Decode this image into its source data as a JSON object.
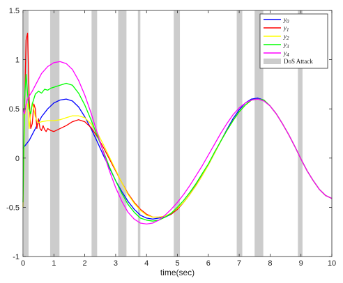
{
  "chart_data": {
    "type": "line",
    "xlabel": "time(sec)",
    "ylabel": "",
    "title": "",
    "xlim": [
      0,
      10
    ],
    "ylim": [
      -1,
      1.5
    ],
    "xticks": [
      0,
      1,
      2,
      3,
      4,
      5,
      6,
      7,
      8,
      9,
      10
    ],
    "yticks": [
      -1,
      -0.5,
      0,
      0.5,
      1,
      1.5
    ],
    "xtick_labels": [
      "0",
      "1",
      "2",
      "3",
      "4",
      "5",
      "6",
      "7",
      "8",
      "9",
      "10"
    ],
    "ytick_labels": [
      "-1",
      "-0.5",
      "0",
      "0.5",
      "1",
      "1.5"
    ],
    "legend_position": "top-right",
    "grid": false,
    "dos_attack": {
      "name": "DoS Attack",
      "color": "#cccccc",
      "intervals": [
        [
          0.02,
          0.18
        ],
        [
          0.88,
          1.18
        ],
        [
          2.22,
          2.4
        ],
        [
          3.08,
          3.35
        ],
        [
          3.72,
          3.8
        ],
        [
          4.88,
          5.08
        ],
        [
          6.92,
          7.1
        ],
        [
          7.5,
          7.78
        ],
        [
          8.9,
          9.05
        ]
      ]
    },
    "series": [
      {
        "name": "y",
        "sub": "0",
        "color": "#0000ff",
        "x": [
          0,
          0.2,
          0.4,
          0.6,
          0.8,
          1.0,
          1.2,
          1.4,
          1.6,
          1.8,
          2.0,
          2.2,
          2.4,
          2.6,
          2.8,
          3.0,
          3.2,
          3.4,
          3.6,
          3.8,
          4.0,
          4.2,
          4.4,
          4.6,
          4.8,
          5.0,
          5.2,
          5.4,
          5.6,
          5.8,
          6.0,
          6.2,
          6.4,
          6.6,
          6.8,
          7.0,
          7.2,
          7.4,
          7.6,
          7.8,
          8.0,
          8.2,
          8.4,
          8.6,
          8.8,
          9.0,
          9.2,
          9.4,
          9.6,
          9.8,
          10.0
        ],
        "y": [
          0.1,
          0.18,
          0.3,
          0.42,
          0.5,
          0.56,
          0.59,
          0.6,
          0.58,
          0.52,
          0.42,
          0.3,
          0.17,
          0.03,
          -0.1,
          -0.23,
          -0.34,
          -0.44,
          -0.52,
          -0.58,
          -0.61,
          -0.62,
          -0.61,
          -0.6,
          -0.57,
          -0.52,
          -0.45,
          -0.37,
          -0.27,
          -0.17,
          -0.07,
          0.05,
          0.17,
          0.29,
          0.4,
          0.49,
          0.56,
          0.6,
          0.61,
          0.59,
          0.53,
          0.45,
          0.35,
          0.24,
          0.12,
          -0.01,
          -0.13,
          -0.23,
          -0.32,
          -0.38,
          -0.41
        ]
      },
      {
        "name": "y",
        "sub": "1",
        "color": "#ff0000",
        "x": [
          0,
          0.05,
          0.1,
          0.15,
          0.2,
          0.25,
          0.3,
          0.35,
          0.4,
          0.45,
          0.5,
          0.55,
          0.6,
          0.65,
          0.7,
          0.75,
          0.8,
          0.9,
          1.0,
          1.2,
          1.4,
          1.6,
          1.8,
          2.0,
          2.2,
          2.4,
          2.6,
          2.8,
          3.0,
          3.2,
          3.4,
          3.6,
          3.8,
          4.0,
          4.2,
          4.4,
          4.6,
          4.8,
          5.0,
          5.2,
          5.4,
          5.6,
          5.8,
          6.0,
          6.2,
          6.4,
          6.6,
          6.8,
          7.0,
          7.2,
          7.4,
          7.6,
          7.8,
          8.0,
          8.2,
          8.4,
          8.6,
          8.8,
          9.0,
          9.2,
          9.4,
          9.6,
          9.8,
          10.0
        ],
        "y": [
          0.5,
          0.5,
          1.2,
          1.27,
          0.6,
          0.3,
          0.35,
          0.55,
          0.5,
          0.3,
          0.4,
          0.3,
          0.28,
          0.33,
          0.29,
          0.27,
          0.3,
          0.28,
          0.27,
          0.3,
          0.33,
          0.37,
          0.39,
          0.37,
          0.31,
          0.22,
          0.11,
          -0.01,
          -0.13,
          -0.25,
          -0.36,
          -0.45,
          -0.52,
          -0.57,
          -0.6,
          -0.6,
          -0.59,
          -0.57,
          -0.52,
          -0.45,
          -0.37,
          -0.28,
          -0.18,
          -0.07,
          0.05,
          0.17,
          0.28,
          0.38,
          0.47,
          0.54,
          0.59,
          0.6,
          0.59,
          0.53,
          0.45,
          0.35,
          0.24,
          0.12,
          -0.01,
          -0.13,
          -0.23,
          -0.32,
          -0.38,
          -0.41
        ]
      },
      {
        "name": "y",
        "sub": "2",
        "color": "#ffff00",
        "x": [
          0,
          0.05,
          0.1,
          0.15,
          0.2,
          0.25,
          0.3,
          0.35,
          0.4,
          0.45,
          0.5,
          0.6,
          0.8,
          1.0,
          1.2,
          1.4,
          1.6,
          1.8,
          2.0,
          2.2,
          2.4,
          2.6,
          2.8,
          3.0,
          3.2,
          3.4,
          3.6,
          3.8,
          4.0,
          4.2,
          4.4,
          4.6,
          4.8,
          5.0,
          5.2,
          5.4,
          5.6,
          5.8,
          6.0,
          6.2,
          6.4,
          6.6,
          6.8,
          7.0,
          7.2,
          7.4,
          7.6,
          7.8,
          8.0,
          8.2,
          8.4,
          8.6,
          8.8,
          9.0,
          9.2,
          9.4,
          9.6,
          9.8,
          10.0
        ],
        "y": [
          -0.5,
          0.4,
          0.55,
          0.55,
          0.3,
          0.45,
          0.56,
          0.5,
          0.42,
          0.38,
          0.36,
          0.37,
          0.38,
          0.38,
          0.39,
          0.41,
          0.43,
          0.43,
          0.41,
          0.35,
          0.26,
          0.14,
          0.01,
          -0.12,
          -0.25,
          -0.37,
          -0.46,
          -0.53,
          -0.58,
          -0.6,
          -0.6,
          -0.59,
          -0.56,
          -0.51,
          -0.45,
          -0.37,
          -0.28,
          -0.18,
          -0.07,
          0.05,
          0.17,
          0.28,
          0.38,
          0.47,
          0.54,
          0.59,
          0.6,
          0.59,
          0.53,
          0.45,
          0.35,
          0.24,
          0.12,
          -0.01,
          -0.13,
          -0.23,
          -0.32,
          -0.38,
          -0.41
        ]
      },
      {
        "name": "y",
        "sub": "3",
        "color": "#00ff00",
        "x": [
          0,
          0.05,
          0.1,
          0.15,
          0.2,
          0.25,
          0.3,
          0.35,
          0.4,
          0.5,
          0.6,
          0.7,
          0.8,
          0.9,
          1.0,
          1.2,
          1.4,
          1.6,
          1.8,
          2.0,
          2.2,
          2.4,
          2.6,
          2.8,
          3.0,
          3.2,
          3.4,
          3.6,
          3.8,
          4.0,
          4.2,
          4.4,
          4.6,
          4.8,
          5.0,
          5.2,
          5.4,
          5.6,
          5.8,
          6.0,
          6.2,
          6.4,
          6.6,
          6.8,
          7.0,
          7.2,
          7.4,
          7.6,
          7.8,
          8.0,
          8.2,
          8.4,
          8.6,
          8.8,
          9.0,
          9.2,
          9.4,
          9.6,
          9.8,
          10.0
        ],
        "y": [
          -0.45,
          0.6,
          0.85,
          0.65,
          0.5,
          0.45,
          0.55,
          0.6,
          0.65,
          0.68,
          0.66,
          0.7,
          0.69,
          0.71,
          0.72,
          0.74,
          0.76,
          0.74,
          0.66,
          0.54,
          0.39,
          0.23,
          0.07,
          -0.09,
          -0.23,
          -0.36,
          -0.47,
          -0.55,
          -0.61,
          -0.63,
          -0.64,
          -0.63,
          -0.6,
          -0.56,
          -0.5,
          -0.43,
          -0.35,
          -0.26,
          -0.16,
          -0.06,
          0.06,
          0.17,
          0.28,
          0.38,
          0.47,
          0.54,
          0.59,
          0.6,
          0.59,
          0.53,
          0.45,
          0.35,
          0.24,
          0.12,
          -0.01,
          -0.13,
          -0.23,
          -0.32,
          -0.38,
          -0.41
        ]
      },
      {
        "name": "y",
        "sub": "4",
        "color": "#ff00ff",
        "x": [
          0,
          0.05,
          0.1,
          0.15,
          0.2,
          0.3,
          0.4,
          0.5,
          0.6,
          0.8,
          1.0,
          1.2,
          1.4,
          1.6,
          1.8,
          2.0,
          2.2,
          2.4,
          2.6,
          2.8,
          3.0,
          3.2,
          3.4,
          3.6,
          3.8,
          4.0,
          4.2,
          4.4,
          4.6,
          4.8,
          5.0,
          5.2,
          5.4,
          5.6,
          5.8,
          6.0,
          6.2,
          6.4,
          6.6,
          6.8,
          7.0,
          7.2,
          7.4,
          7.6,
          7.8,
          8.0,
          8.2,
          8.4,
          8.6,
          8.8,
          9.0,
          9.2,
          9.4,
          9.6,
          9.8,
          10.0
        ],
        "y": [
          0.5,
          0.45,
          0.55,
          0.6,
          0.63,
          0.68,
          0.74,
          0.8,
          0.86,
          0.93,
          0.97,
          0.98,
          0.96,
          0.9,
          0.79,
          0.64,
          0.46,
          0.26,
          0.06,
          -0.13,
          -0.3,
          -0.44,
          -0.55,
          -0.62,
          -0.66,
          -0.67,
          -0.66,
          -0.63,
          -0.58,
          -0.52,
          -0.45,
          -0.37,
          -0.28,
          -0.18,
          -0.08,
          0.03,
          0.14,
          0.25,
          0.35,
          0.44,
          0.51,
          0.56,
          0.59,
          0.6,
          0.58,
          0.53,
          0.45,
          0.35,
          0.24,
          0.12,
          -0.01,
          -0.13,
          -0.23,
          -0.32,
          -0.38,
          -0.41
        ]
      }
    ]
  }
}
